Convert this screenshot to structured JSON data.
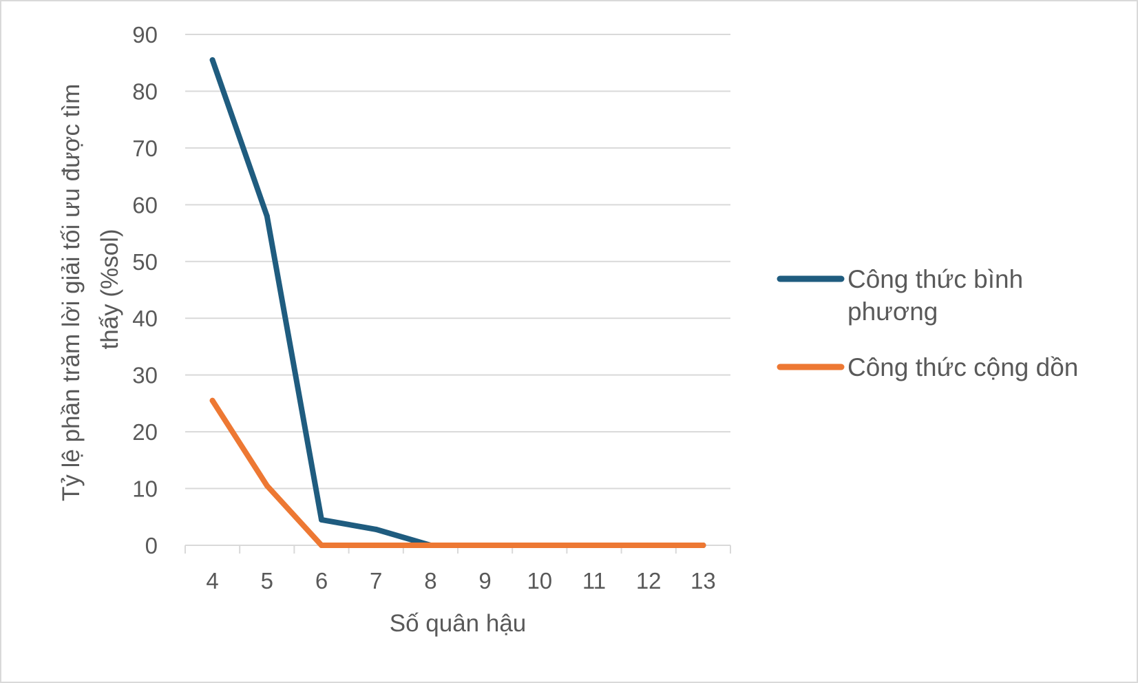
{
  "chart_data": {
    "type": "line",
    "title": "",
    "xlabel": "Số quân hậu",
    "ylabel": "Tỷ lệ phần trăm lời giải tối ưu được tìm thấy (%sol)",
    "ylabel_lines": [
      "Tỷ lệ phần trăm lời giải tối ưu được tìm",
      "thấy (%sol)"
    ],
    "categories": [
      "4",
      "5",
      "6",
      "7",
      "8",
      "9",
      "10",
      "11",
      "12",
      "13"
    ],
    "ylim": [
      0,
      90
    ],
    "yticks": [
      "0",
      "10",
      "20",
      "30",
      "40",
      "50",
      "60",
      "70",
      "80",
      "90"
    ],
    "grid": true,
    "legend_position": "right",
    "series": [
      {
        "name": "Công thức bình phương",
        "name_lines": [
          "Công thức bình",
          "phương"
        ],
        "color": "#1f5c7f",
        "values": [
          85.5,
          58,
          4.5,
          2.8,
          0,
          0,
          0,
          0,
          0,
          0
        ]
      },
      {
        "name": "Công thức cộng dồn",
        "name_lines": [
          "Công thức cộng dồn"
        ],
        "color": "#ed7833",
        "values": [
          25.5,
          10.5,
          0,
          0,
          0,
          0,
          0,
          0,
          0,
          0
        ]
      }
    ]
  }
}
